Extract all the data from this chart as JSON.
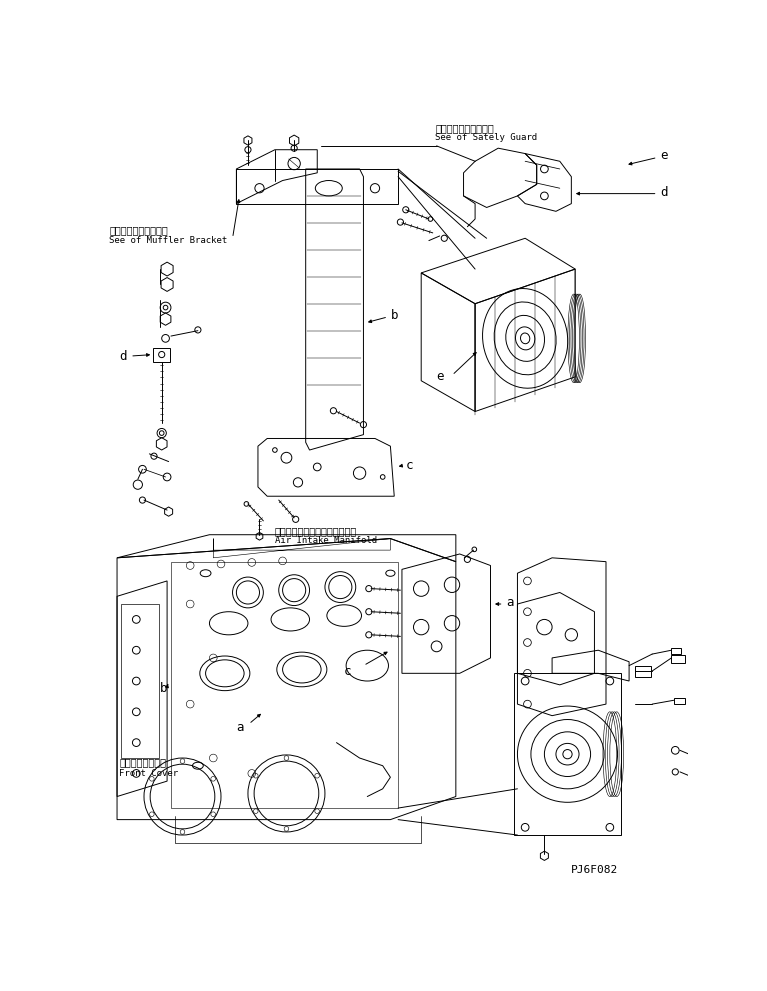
{
  "background_color": "#ffffff",
  "line_color": "#000000",
  "part_code": "PJ6F082",
  "annotations": {
    "safety_guard_jp": "セーフティガード参照",
    "safety_guard_en": "See of Sately Guard",
    "muffler_jp": "マフラブラケット参照",
    "muffler_en": "See of Muffler Bracket",
    "air_intake_jp": "エアーインテークマニホールド",
    "air_intake_en": "Air Intake Manifold",
    "front_cover_jp": "フロントカバー－",
    "front_cover_en": "Front Cover"
  },
  "figsize": [
    7.67,
    9.91
  ],
  "dpi": 100
}
